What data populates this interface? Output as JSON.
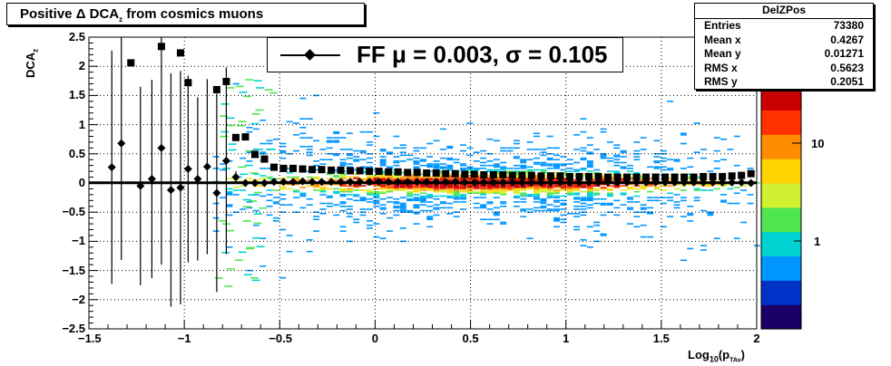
{
  "title": {
    "prefix": "Positive Δ DCA",
    "sub": "z",
    "suffix": " from cosmics muons"
  },
  "stats": {
    "name": "DelZPos",
    "rows": [
      {
        "label": "Entries",
        "value": "73380"
      },
      {
        "label": "Mean x",
        "value": "0.4267"
      },
      {
        "label": "Mean y",
        "value": "0.01271"
      },
      {
        "label": "RMS x",
        "value": "0.5623"
      },
      {
        "label": "RMS y",
        "value": "0.2051"
      }
    ]
  },
  "legend": {
    "text": "FF μ =  0.003, σ =   0.105"
  },
  "axes": {
    "xlabel_main": "Log",
    "xlabel_sub1": "10",
    "xlabel_mid": "(p",
    "xlabel_sub2": "TAv",
    "xlabel_end": ")",
    "ylabel_main": "DCA",
    "ylabel_sub": "z",
    "xticks": [
      "−1.5",
      "−1",
      "−0.5",
      "0",
      "0.5",
      "1",
      "1.5",
      "2"
    ],
    "yticks": [
      "2.5",
      "2",
      "1.5",
      "1",
      "0.5",
      "0",
      "−0.5",
      "−1",
      "−1.5",
      "−2",
      "−2.5"
    ],
    "colz_ticks": [
      "10",
      "1"
    ]
  },
  "chart_data": {
    "type": "heatmap",
    "title": "Positive Δ DCA_z from cosmics muons",
    "xlabel": "Log10(p_TAv)",
    "ylabel": "DCA_z",
    "xlim": [
      -1.5,
      2
    ],
    "ylim": [
      -2.5,
      2.5
    ],
    "z_scale": "log",
    "grid": true,
    "series": [
      {
        "name": "mean",
        "marker": "diamond",
        "x": [
          -1.38,
          -1.33,
          -1.23,
          -1.17,
          -1.12,
          -1.07,
          -1.02,
          -0.98,
          -0.93,
          -0.88,
          -0.83,
          -0.78,
          -0.73,
          -0.68,
          -0.63,
          -0.58,
          -0.53,
          -0.48,
          -0.43,
          -0.38,
          -0.33,
          -0.28,
          -0.23,
          -0.18,
          -0.13,
          -0.08,
          -0.03,
          0.02,
          0.07,
          0.12,
          0.17,
          0.22,
          0.27,
          0.32,
          0.37,
          0.42,
          0.47,
          0.52,
          0.57,
          0.62,
          0.67,
          0.72,
          0.77,
          0.82,
          0.87,
          0.92,
          0.97,
          1.02,
          1.07,
          1.12,
          1.17,
          1.22,
          1.27,
          1.32,
          1.37,
          1.42,
          1.47,
          1.52,
          1.57,
          1.62,
          1.67,
          1.72,
          1.77,
          1.82,
          1.87,
          1.92,
          1.97
        ],
        "y": [
          0.27,
          0.68,
          -0.05,
          0.07,
          0.6,
          -0.12,
          -0.08,
          0.24,
          0.07,
          0.28,
          -0.17,
          0.38,
          0.1,
          0.0,
          0.0,
          0.0,
          0.02,
          0.02,
          0.02,
          0.03,
          0.02,
          0.02,
          0.02,
          0.02,
          0.02,
          0.02,
          0.02,
          0.02,
          0.02,
          0.02,
          0.02,
          0.02,
          0.02,
          0.02,
          0.02,
          0.02,
          0.01,
          0.01,
          0.01,
          0.01,
          0.01,
          0.01,
          0.01,
          0.01,
          0.01,
          0.01,
          0.01,
          0.01,
          0.01,
          0.01,
          0.01,
          0.01,
          0.01,
          0.01,
          0.01,
          0.01,
          0.01,
          0.01,
          0.01,
          0.01,
          0.01,
          0.01,
          0.01,
          0.01,
          0.01,
          0.01,
          0.0
        ],
        "yerr": [
          2.0,
          2.0,
          1.7,
          1.7,
          2.0,
          2.0,
          2.0,
          1.6,
          1.4,
          1.5,
          1.7,
          1.6,
          0.1,
          0.03,
          0.03,
          0.02,
          0.02,
          0.02,
          0.01,
          0.01,
          0.01,
          0.01,
          0.01,
          0.01,
          0.01,
          0.01,
          0.01,
          0.01,
          0.01,
          0.01,
          0.01,
          0.01,
          0.01,
          0.01,
          0.01,
          0.01,
          0.01,
          0.01,
          0.01,
          0.01,
          0.01,
          0.01,
          0.01,
          0.01,
          0.01,
          0.01,
          0.01,
          0.01,
          0.01,
          0.01,
          0.01,
          0.01,
          0.01,
          0.01,
          0.01,
          0.01,
          0.01,
          0.01,
          0.01,
          0.01,
          0.01,
          0.01,
          0.01,
          0.01,
          0.01,
          0.01,
          0.01
        ]
      },
      {
        "name": "rms",
        "marker": "square",
        "x": [
          -1.28,
          -1.12,
          -1.02,
          -0.98,
          -0.83,
          -0.78,
          -0.73,
          -0.68,
          -0.63,
          -0.58,
          -0.53,
          -0.48,
          -0.43,
          -0.38,
          -0.33,
          -0.28,
          -0.23,
          -0.18,
          -0.13,
          -0.08,
          -0.03,
          0.02,
          0.07,
          0.12,
          0.17,
          0.22,
          0.27,
          0.32,
          0.37,
          0.42,
          0.47,
          0.52,
          0.57,
          0.62,
          0.67,
          0.72,
          0.77,
          0.82,
          0.87,
          0.92,
          0.97,
          1.02,
          1.07,
          1.12,
          1.17,
          1.22,
          1.27,
          1.32,
          1.37,
          1.42,
          1.47,
          1.52,
          1.57,
          1.62,
          1.67,
          1.72,
          1.77,
          1.82,
          1.87,
          1.92,
          1.97
        ],
        "y": [
          2.06,
          2.34,
          2.23,
          1.72,
          1.6,
          1.74,
          0.78,
          0.79,
          0.49,
          0.41,
          0.27,
          0.25,
          0.25,
          0.24,
          0.23,
          0.23,
          0.22,
          0.22,
          0.21,
          0.21,
          0.2,
          0.2,
          0.19,
          0.19,
          0.18,
          0.18,
          0.17,
          0.17,
          0.16,
          0.16,
          0.15,
          0.15,
          0.14,
          0.14,
          0.14,
          0.13,
          0.13,
          0.13,
          0.12,
          0.12,
          0.12,
          0.11,
          0.11,
          0.11,
          0.11,
          0.1,
          0.1,
          0.1,
          0.1,
          0.1,
          0.1,
          0.1,
          0.1,
          0.1,
          0.1,
          0.11,
          0.11,
          0.11,
          0.12,
          0.13,
          0.16
        ]
      }
    ],
    "fit": {
      "mu": 0.003,
      "sigma": 0.105
    }
  },
  "colors": {
    "palette": [
      "#1a0066",
      "#0032c8",
      "#0096ff",
      "#00d2d2",
      "#50e650",
      "#d2f032",
      "#ffd200",
      "#ff8c00",
      "#ff3200",
      "#c80000"
    ]
  }
}
